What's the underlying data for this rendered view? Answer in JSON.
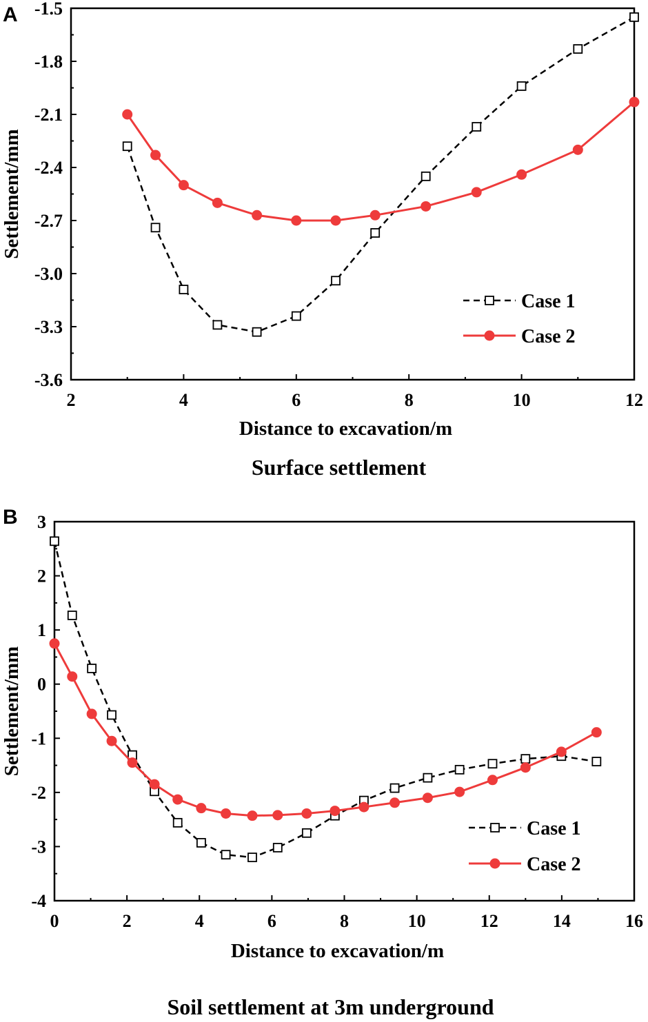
{
  "chart_data": [
    {
      "panel_label": "A",
      "type": "line",
      "title": "Surface settlement",
      "xlabel": "Distance to excavation/m",
      "ylabel": "Settlement/mm",
      "xlim": [
        2,
        12
      ],
      "ylim": [
        -3.6,
        -1.5
      ],
      "xticks": [
        2,
        4,
        6,
        8,
        10,
        12
      ],
      "yticks": [
        -1.5,
        -1.8,
        -2.1,
        -2.4,
        -2.7,
        -3.0,
        -3.3,
        -3.6
      ],
      "ytick_labels": [
        "-1.5",
        "-1.8",
        "-2.1",
        "-2.4",
        "-2.7",
        "-3.0",
        "-3.3",
        "-3.6"
      ],
      "grid": false,
      "legend_position": "bottom-right",
      "series": [
        {
          "name": "Case 1",
          "color": "#000000",
          "style": "dashed",
          "marker": "open-square",
          "x": [
            3.0,
            3.5,
            4.0,
            4.6,
            5.3,
            6.0,
            6.7,
            7.4,
            8.3,
            9.2,
            10.0,
            11.0,
            12.0
          ],
          "y": [
            -2.28,
            -2.74,
            -3.09,
            -3.29,
            -3.33,
            -3.24,
            -3.04,
            -2.77,
            -2.45,
            -2.17,
            -1.94,
            -1.73,
            -1.55
          ]
        },
        {
          "name": "Case 2",
          "color": "#ee3b3b",
          "style": "solid",
          "marker": "filled-circle",
          "x": [
            3.0,
            3.5,
            4.0,
            4.6,
            5.3,
            6.0,
            6.7,
            7.4,
            8.3,
            9.2,
            10.0,
            11.0,
            12.0
          ],
          "y": [
            -2.1,
            -2.33,
            -2.5,
            -2.6,
            -2.67,
            -2.7,
            -2.7,
            -2.67,
            -2.62,
            -2.54,
            -2.44,
            -2.3,
            -2.03
          ]
        }
      ]
    },
    {
      "panel_label": "B",
      "type": "line",
      "title": "Soil settlement at 3m underground",
      "xlabel": "Distance to excavation/m",
      "ylabel": "Settlement/mm",
      "xlim": [
        0,
        16
      ],
      "ylim": [
        -4,
        3
      ],
      "xticks": [
        0,
        2,
        4,
        6,
        8,
        10,
        12,
        14,
        16
      ],
      "yticks": [
        3,
        2,
        1,
        0,
        -1,
        -2,
        -3,
        -4
      ],
      "ytick_labels": [
        "3",
        "2",
        "1",
        "0",
        "-1",
        "-2",
        "-3",
        "-4"
      ],
      "grid": false,
      "legend_position": "bottom-right",
      "series": [
        {
          "name": "Case 1",
          "color": "#000000",
          "style": "dashed",
          "marker": "open-square",
          "x": [
            0,
            0.49,
            1.03,
            1.58,
            2.15,
            2.76,
            3.4,
            4.05,
            4.73,
            5.46,
            6.16,
            6.96,
            7.74,
            8.54,
            9.39,
            10.3,
            11.18,
            12.09,
            13.0,
            13.99,
            14.96
          ],
          "y": [
            2.64,
            1.27,
            0.29,
            -0.57,
            -1.31,
            -1.98,
            -2.56,
            -2.93,
            -3.15,
            -3.2,
            -3.02,
            -2.75,
            -2.43,
            -2.15,
            -1.92,
            -1.73,
            -1.58,
            -1.47,
            -1.38,
            -1.33,
            -1.43
          ]
        },
        {
          "name": "Case 2",
          "color": "#ee3b3b",
          "style": "solid",
          "marker": "filled-circle",
          "x": [
            0,
            0.49,
            1.03,
            1.58,
            2.15,
            2.76,
            3.4,
            4.05,
            4.73,
            5.46,
            6.16,
            6.96,
            7.74,
            8.54,
            9.39,
            10.3,
            11.18,
            12.09,
            13.0,
            13.99,
            14.96
          ],
          "y": [
            0.75,
            0.14,
            -0.55,
            -1.05,
            -1.45,
            -1.85,
            -2.13,
            -2.29,
            -2.39,
            -2.43,
            -2.42,
            -2.39,
            -2.34,
            -2.27,
            -2.19,
            -2.1,
            -1.99,
            -1.77,
            -1.54,
            -1.25,
            -0.89
          ]
        }
      ]
    }
  ]
}
